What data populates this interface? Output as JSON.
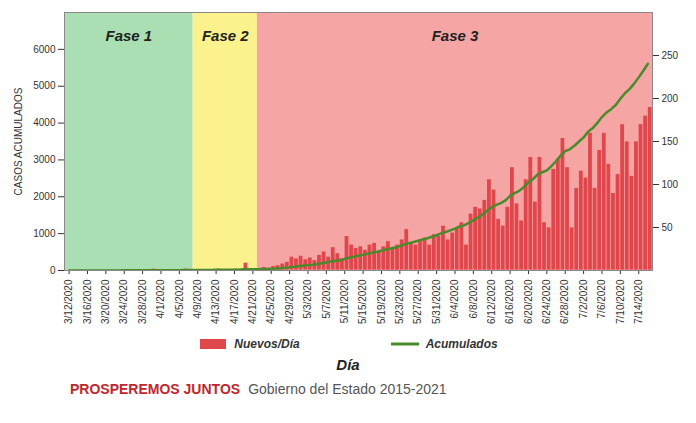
{
  "chart_data": {
    "type": "bar",
    "ylabel": "CASOS ACUMULADOS",
    "xlabel": "Día",
    "legend": "bottom",
    "x": [
      "2020-03-12",
      "2020-03-13",
      "2020-03-14",
      "2020-03-15",
      "2020-03-16",
      "2020-03-17",
      "2020-03-18",
      "2020-03-19",
      "2020-03-20",
      "2020-03-21",
      "2020-03-22",
      "2020-03-23",
      "2020-03-24",
      "2020-03-25",
      "2020-03-26",
      "2020-03-27",
      "2020-03-28",
      "2020-03-29",
      "2020-03-30",
      "2020-03-31",
      "2020-04-01",
      "2020-04-02",
      "2020-04-03",
      "2020-04-04",
      "2020-04-05",
      "2020-04-06",
      "2020-04-07",
      "2020-04-08",
      "2020-04-09",
      "2020-04-10",
      "2020-04-11",
      "2020-04-12",
      "2020-04-13",
      "2020-04-14",
      "2020-04-15",
      "2020-04-16",
      "2020-04-17",
      "2020-04-18",
      "2020-04-19",
      "2020-04-20",
      "2020-04-21",
      "2020-04-22",
      "2020-04-23",
      "2020-04-24",
      "2020-04-25",
      "2020-04-26",
      "2020-04-27",
      "2020-04-28",
      "2020-04-29",
      "2020-04-30",
      "2020-05-01",
      "2020-05-02",
      "2020-05-03",
      "2020-05-04",
      "2020-05-05",
      "2020-05-06",
      "2020-05-07",
      "2020-05-08",
      "2020-05-09",
      "2020-05-10",
      "2020-05-11",
      "2020-05-12",
      "2020-05-13",
      "2020-05-14",
      "2020-05-15",
      "2020-05-16",
      "2020-05-17",
      "2020-05-18",
      "2020-05-19",
      "2020-05-20",
      "2020-05-21",
      "2020-05-22",
      "2020-05-23",
      "2020-05-24",
      "2020-05-25",
      "2020-05-26",
      "2020-05-27",
      "2020-05-28",
      "2020-05-29",
      "2020-05-30",
      "2020-05-31",
      "2020-06-01",
      "2020-06-02",
      "2020-06-03",
      "2020-06-04",
      "2020-06-05",
      "2020-06-06",
      "2020-06-07",
      "2020-06-08",
      "2020-06-09",
      "2020-06-10",
      "2020-06-11",
      "2020-06-12",
      "2020-06-13",
      "2020-06-14",
      "2020-06-15",
      "2020-06-16",
      "2020-06-17",
      "2020-06-18",
      "2020-06-19",
      "2020-06-20",
      "2020-06-21",
      "2020-06-22",
      "2020-06-23",
      "2020-06-24",
      "2020-06-25",
      "2020-06-26",
      "2020-06-27",
      "2020-06-28",
      "2020-06-29",
      "2020-06-30",
      "2020-07-01",
      "2020-07-02",
      "2020-07-03",
      "2020-07-04",
      "2020-07-05",
      "2020-07-06",
      "2020-07-07",
      "2020-07-08",
      "2020-07-09",
      "2020-07-10",
      "2020-07-11",
      "2020-07-12",
      "2020-07-13",
      "2020-07-14",
      "2020-07-15",
      "2020-07-16"
    ],
    "series": [
      {
        "name": "Nuevos/Día",
        "type": "bar",
        "axis": "y2",
        "color": "#e0474c",
        "values": [
          0,
          0,
          0,
          0,
          1,
          0,
          0,
          1,
          0,
          0,
          1,
          0,
          1,
          0,
          0,
          1,
          0,
          0,
          2,
          0,
          1,
          0,
          1,
          0,
          0,
          2,
          1,
          0,
          1,
          1,
          0,
          1,
          2,
          0,
          1,
          1,
          2,
          1,
          9,
          2,
          1,
          2,
          4,
          3,
          5,
          6,
          8,
          10,
          16,
          14,
          17,
          13,
          15,
          12,
          18,
          22,
          16,
          27,
          20,
          14,
          40,
          30,
          26,
          28,
          24,
          30,
          32,
          22,
          28,
          34,
          26,
          30,
          36,
          48,
          32,
          30,
          34,
          38,
          30,
          42,
          40,
          52,
          36,
          44,
          50,
          56,
          30,
          66,
          74,
          72,
          82,
          106,
          94,
          60,
          52,
          74,
          120,
          78,
          58,
          106,
          132,
          80,
          132,
          56,
          50,
          118,
          130,
          154,
          120,
          50,
          96,
          116,
          108,
          160,
          96,
          140,
          160,
          124,
          90,
          112,
          170,
          150,
          110,
          150,
          170,
          180,
          190
        ]
      },
      {
        "name": "Acumulados",
        "type": "line",
        "color": "#4a8a2a",
        "values": [
          0,
          0,
          0,
          0,
          1,
          1,
          1,
          2,
          2,
          2,
          3,
          3,
          4,
          4,
          4,
          5,
          5,
          5,
          7,
          7,
          8,
          8,
          9,
          9,
          9,
          11,
          12,
          12,
          13,
          14,
          14,
          15,
          17,
          17,
          18,
          19,
          21,
          22,
          31,
          33,
          34,
          36,
          40,
          43,
          48,
          54,
          62,
          72,
          88,
          102,
          119,
          132,
          147,
          159,
          177,
          199,
          215,
          242,
          262,
          276,
          316,
          346,
          372,
          400,
          424,
          454,
          486,
          508,
          536,
          570,
          596,
          626,
          662,
          710,
          742,
          772,
          806,
          844,
          874,
          916,
          956,
          1008,
          1044,
          1088,
          1138,
          1194,
          1224,
          1290,
          1364,
          1436,
          1518,
          1624,
          1718,
          1778,
          1830,
          1904,
          2024,
          2102,
          2160,
          2266,
          2398,
          2478,
          2610,
          2666,
          2716,
          2834,
          2964,
          3118,
          3238,
          3288,
          3384,
          3500,
          3608,
          3768,
          3864,
          4004,
          4164,
          4288,
          4378,
          4490,
          4660,
          4810,
          4920,
          5070,
          5240,
          5420,
          5610
        ]
      }
    ],
    "xlim": [
      "2020-03-11",
      "2020-07-17"
    ],
    "xticks": [
      {
        "value": "2020-03-12",
        "label": "3/12/2020"
      },
      {
        "value": "2020-03-16",
        "label": "3/16/2020"
      },
      {
        "value": "2020-03-20",
        "label": "3/20/2020"
      },
      {
        "value": "2020-03-24",
        "label": "3/24/2020"
      },
      {
        "value": "2020-03-28",
        "label": "3/28/2020"
      },
      {
        "value": "2020-04-01",
        "label": "4/1/2020"
      },
      {
        "value": "2020-04-05",
        "label": "4/5/2020"
      },
      {
        "value": "2020-04-09",
        "label": "4/9/2020"
      },
      {
        "value": "2020-04-13",
        "label": "4/13/2020"
      },
      {
        "value": "2020-04-17",
        "label": "4/17/2020"
      },
      {
        "value": "2020-04-21",
        "label": "4/21/2020"
      },
      {
        "value": "2020-04-25",
        "label": "4/25/2020"
      },
      {
        "value": "2020-04-29",
        "label": "4/29/2020"
      },
      {
        "value": "2020-05-03",
        "label": "5/3/2020"
      },
      {
        "value": "2020-05-07",
        "label": "5/7/2020"
      },
      {
        "value": "2020-05-11",
        "label": "5/11/2020"
      },
      {
        "value": "2020-05-15",
        "label": "5/15/2020"
      },
      {
        "value": "2020-05-19",
        "label": "5/19/2020"
      },
      {
        "value": "2020-05-23",
        "label": "5/23/2020"
      },
      {
        "value": "2020-05-27",
        "label": "5/27/2020"
      },
      {
        "value": "2020-05-31",
        "label": "5/31/2020"
      },
      {
        "value": "2020-06-04",
        "label": "6/4/2020"
      },
      {
        "value": "2020-06-08",
        "label": "6/8/2020"
      },
      {
        "value": "2020-06-12",
        "label": "6/12/2020"
      },
      {
        "value": "2020-06-16",
        "label": "6/16/2020"
      },
      {
        "value": "2020-06-20",
        "label": "6/20/2020"
      },
      {
        "value": "2020-06-24",
        "label": "6/24/2020"
      },
      {
        "value": "2020-06-28",
        "label": "6/28/2020"
      },
      {
        "value": "2020-07-02",
        "label": "7/2/2020"
      },
      {
        "value": "2020-07-06",
        "label": "7/6/2020"
      },
      {
        "value": "2020-07-10",
        "label": "7/10/2020"
      },
      {
        "value": "2020-07-14",
        "label": "7/14/2020"
      }
    ],
    "ylim": [
      0,
      7000
    ],
    "yticks": [
      0,
      1000,
      2000,
      3000,
      4000,
      5000,
      6000
    ],
    "y2lim": [
      0,
      300
    ],
    "y2ticks": [
      50,
      100,
      150,
      200,
      250
    ],
    "phases": [
      {
        "name": "Fase 1",
        "start": "2020-03-11",
        "end": "2020-04-08",
        "color": "#a9dfb2"
      },
      {
        "name": "Fase 2",
        "start": "2020-04-08",
        "end": "2020-04-22",
        "color": "#fbf28e"
      },
      {
        "name": "Fase 3",
        "start": "2020-04-22",
        "end": "2020-07-17",
        "color": "#f6a5a5"
      }
    ]
  },
  "footer": {
    "slogan": "PROSPEREMOS JUNTOS",
    "text": "Gobierno del Estado 2015-2021"
  }
}
